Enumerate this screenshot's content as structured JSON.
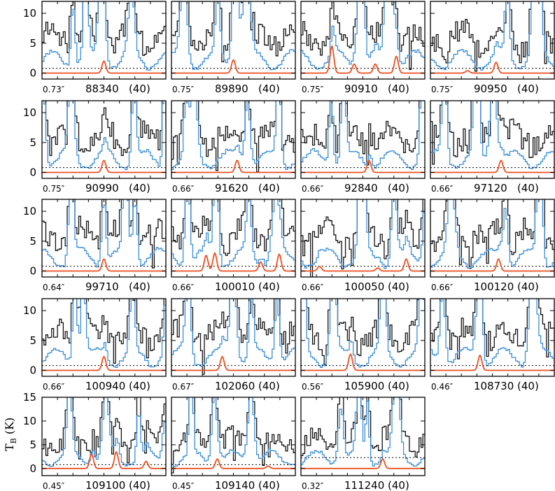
{
  "figure": {
    "ylabel_main": "T",
    "ylabel_sub": "B",
    "ylabel_unit": " (K)",
    "colors": {
      "observed": "#111111",
      "model_total": "#3b8ed8",
      "model_species": "#ee4f1f",
      "threshold": "#000000"
    }
  },
  "chart_data": {
    "type": "line",
    "layout": "grid of spectral panels, 4 columns x 5 rows (last row has 3 panels)",
    "series_names": [],
    "panels": [
      {
        "row": 0,
        "beam": "0.73″",
        "freq": "88340",
        "width": "(40)",
        "ylim": [
          -1,
          12
        ],
        "yticks": [
          0,
          5,
          10
        ],
        "threshold": 0.8,
        "line_centers": [
          0.5
        ],
        "line_peaks": [
          2.0
        ]
      },
      {
        "row": 0,
        "beam": "0.75″",
        "freq": "89890",
        "width": "(40)",
        "ylim": [
          -1,
          12
        ],
        "yticks": [
          0,
          5,
          10
        ],
        "threshold": 0.8,
        "line_centers": [
          0.5
        ],
        "line_peaks": [
          2.2
        ]
      },
      {
        "row": 0,
        "beam": "0.75″",
        "freq": "90910",
        "width": "(40)",
        "ylim": [
          -1,
          12
        ],
        "yticks": [
          0,
          5,
          10
        ],
        "threshold": 0.8,
        "line_centers": [
          0.25,
          0.43,
          0.6,
          0.77
        ],
        "line_peaks": [
          4.5,
          1.5,
          1.5,
          2.8
        ]
      },
      {
        "row": 0,
        "beam": "0.75″",
        "freq": "90950",
        "width": "(40)",
        "ylim": [
          -1,
          12
        ],
        "yticks": [
          0,
          5,
          10
        ],
        "threshold": 0.8,
        "line_centers": [
          0.3,
          0.53
        ],
        "line_peaks": [
          0.4,
          1.8
        ]
      },
      {
        "row": 1,
        "beam": "0.75″",
        "freq": "90990",
        "width": "(40)",
        "ylim": [
          -1,
          12
        ],
        "yticks": [
          0,
          5,
          10
        ],
        "threshold": 0.8,
        "line_centers": [
          0.5
        ],
        "line_peaks": [
          2.0
        ]
      },
      {
        "row": 1,
        "beam": "0.66″",
        "freq": "91620",
        "width": "(40)",
        "ylim": [
          -1,
          12
        ],
        "yticks": [
          0,
          5,
          10
        ],
        "threshold": 0.8,
        "line_centers": [
          0.53
        ],
        "line_peaks": [
          2.0
        ]
      },
      {
        "row": 1,
        "beam": "0.66″",
        "freq": "92840",
        "width": "(40)",
        "ylim": [
          -1,
          12
        ],
        "yticks": [
          0,
          5,
          10
        ],
        "threshold": 0.8,
        "line_centers": [
          0.55
        ],
        "line_peaks": [
          2.0
        ]
      },
      {
        "row": 1,
        "beam": "0.66″",
        "freq": "97120",
        "width": "(40)",
        "ylim": [
          -1,
          12
        ],
        "yticks": [
          0,
          5,
          10
        ],
        "threshold": 0.8,
        "line_centers": [
          0.57
        ],
        "line_peaks": [
          2.0
        ]
      },
      {
        "row": 2,
        "beam": "0.64″",
        "freq": "99710",
        "width": "(40)",
        "ylim": [
          -1,
          12
        ],
        "yticks": [
          0,
          5,
          10
        ],
        "threshold": 0.8,
        "line_centers": [
          0.5
        ],
        "line_peaks": [
          2.0
        ]
      },
      {
        "row": 2,
        "beam": "0.66″",
        "freq": "100010",
        "width": "(40)",
        "ylim": [
          -1,
          12
        ],
        "yticks": [
          0,
          5,
          10
        ],
        "threshold": 0.8,
        "line_centers": [
          0.28,
          0.35,
          0.72,
          0.87
        ],
        "line_peaks": [
          2.6,
          3.0,
          1.5,
          2.8
        ]
      },
      {
        "row": 2,
        "beam": "0.66″",
        "freq": "100050",
        "width": "(40)",
        "ylim": [
          -1,
          12
        ],
        "yticks": [
          0,
          5,
          10
        ],
        "threshold": 0.8,
        "line_centers": [
          0.15,
          0.62,
          0.85
        ],
        "line_peaks": [
          0.8,
          0.5,
          2.0
        ]
      },
      {
        "row": 2,
        "beam": "0.66″",
        "freq": "100120",
        "width": "(40)",
        "ylim": [
          -1,
          12
        ],
        "yticks": [
          0,
          5,
          10
        ],
        "threshold": 0.8,
        "line_centers": [
          0.55
        ],
        "line_peaks": [
          2.0
        ]
      },
      {
        "row": 3,
        "beam": "0.66″",
        "freq": "100940",
        "width": "(40)",
        "ylim": [
          -1,
          12
        ],
        "yticks": [
          0,
          5,
          10
        ],
        "threshold": 0.8,
        "line_centers": [
          0.5
        ],
        "line_peaks": [
          2.3
        ]
      },
      {
        "row": 3,
        "beam": "0.67″",
        "freq": "102060",
        "width": "(40)",
        "ylim": [
          -1,
          12
        ],
        "yticks": [
          0,
          5,
          10
        ],
        "threshold": 0.8,
        "line_centers": [
          0.41
        ],
        "line_peaks": [
          2.3
        ]
      },
      {
        "row": 3,
        "beam": "0.56″",
        "freq": "105900",
        "width": "(40)",
        "ylim": [
          -1,
          12
        ],
        "yticks": [
          0,
          5,
          10
        ],
        "threshold": 0.8,
        "line_centers": [
          0.4
        ],
        "line_peaks": [
          2.7
        ]
      },
      {
        "row": 3,
        "beam": "0.46″",
        "freq": "108730",
        "width": "(40)",
        "ylim": [
          -1,
          12
        ],
        "yticks": [
          0,
          5,
          10
        ],
        "threshold": 0.8,
        "line_centers": [
          0.4
        ],
        "line_peaks": [
          2.5
        ]
      },
      {
        "row": 4,
        "beam": "0.45″",
        "freq": "109100",
        "width": "(40)",
        "ylim": [
          -1.5,
          15
        ],
        "yticks": [
          0,
          5,
          10,
          15
        ],
        "threshold": 0.8,
        "line_centers": [
          0.4,
          0.6,
          0.84
        ],
        "line_peaks": [
          3.0,
          3.5,
          1.5
        ]
      },
      {
        "row": 4,
        "beam": "0.45″",
        "freq": "109140",
        "width": "(40)",
        "ylim": [
          -1.5,
          15
        ],
        "yticks": [
          0,
          5,
          10,
          15
        ],
        "threshold": 0.8,
        "line_centers": [
          0.37,
          0.78
        ],
        "line_peaks": [
          2.0,
          0.5
        ]
      },
      {
        "row": 4,
        "beam": "0.32″",
        "freq": "111240",
        "width": "(40)",
        "ylim": [
          -1.5,
          15
        ],
        "yticks": [
          0,
          5,
          10,
          15
        ],
        "threshold": 2.3,
        "line_centers": [
          0.66
        ],
        "line_peaks": [
          2.0
        ]
      }
    ]
  }
}
